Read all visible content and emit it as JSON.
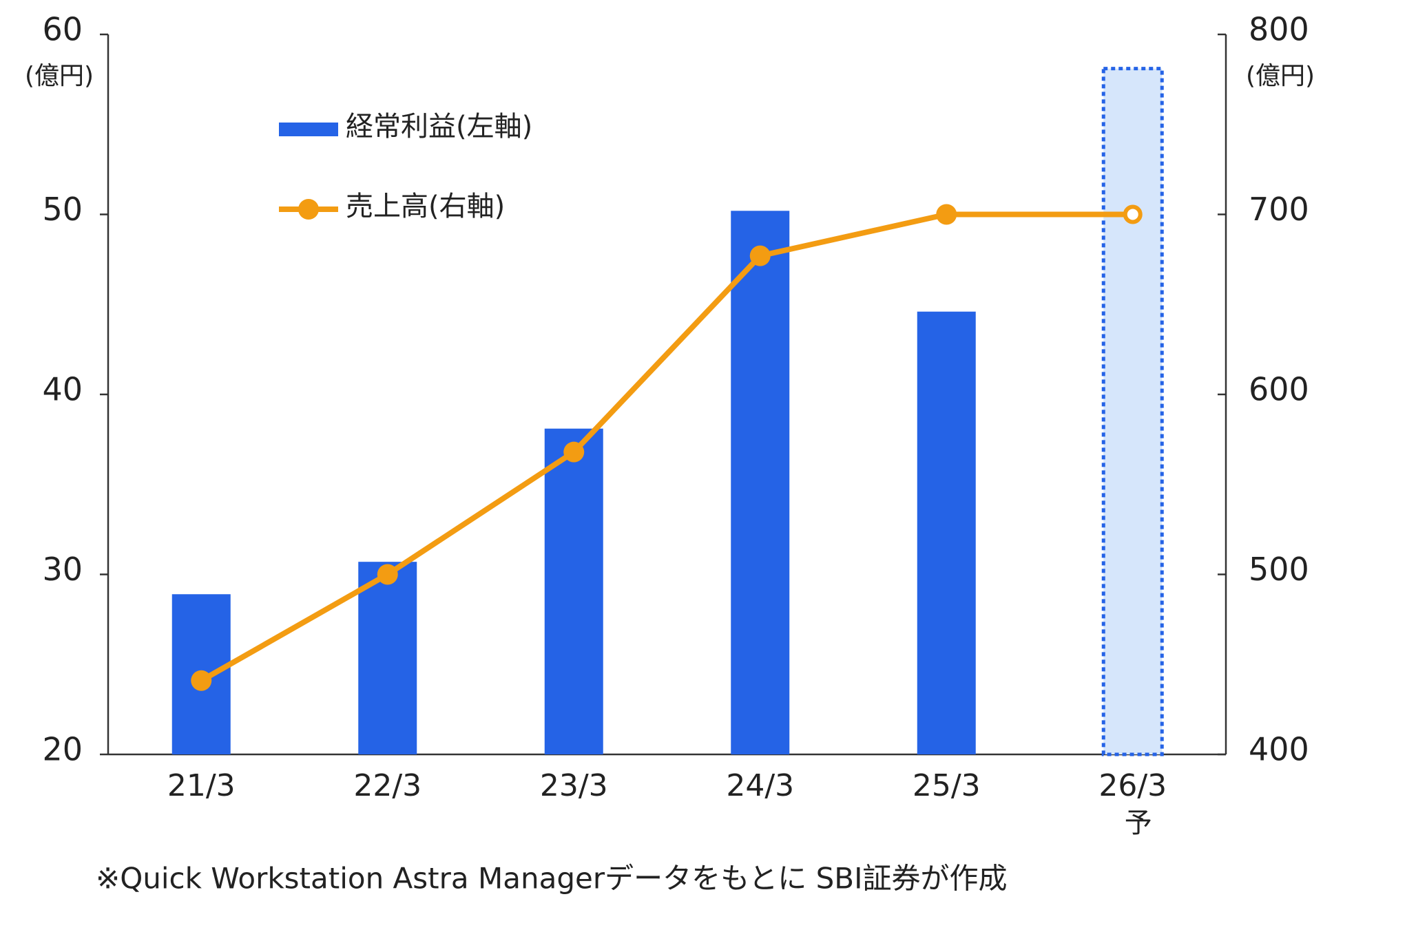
{
  "chart_data": {
    "type": "bar_line",
    "categories": [
      "21/3",
      "22/3",
      "23/3",
      "24/3",
      "25/3",
      "26/3"
    ],
    "category_notes": [
      null,
      null,
      null,
      null,
      null,
      "予"
    ],
    "y_label": "(億円)",
    "y2_label": "(億円)",
    "ylim": [
      20,
      60
    ],
    "yticks": [
      20,
      30,
      40,
      50,
      60
    ],
    "y2lim": [
      400,
      800
    ],
    "y2ticks": [
      400,
      500,
      600,
      700,
      800
    ],
    "grid": false,
    "series": [
      {
        "name": "経常利益(左軸)",
        "type": "bar",
        "color": "#2563e6",
        "forecast_color": "#d6e6fb",
        "values": [
          28.9,
          30.7,
          38.1,
          50.2,
          44.6,
          58.1
        ]
      },
      {
        "name": "売上高(右軸)",
        "type": "line",
        "axis": "y2",
        "color": "#f39c12",
        "values": [
          441,
          500,
          568,
          677,
          700,
          700
        ]
      }
    ],
    "footnote": "※Quick Workstation Astra Managerデータをもとに SBI証券が作成"
  }
}
